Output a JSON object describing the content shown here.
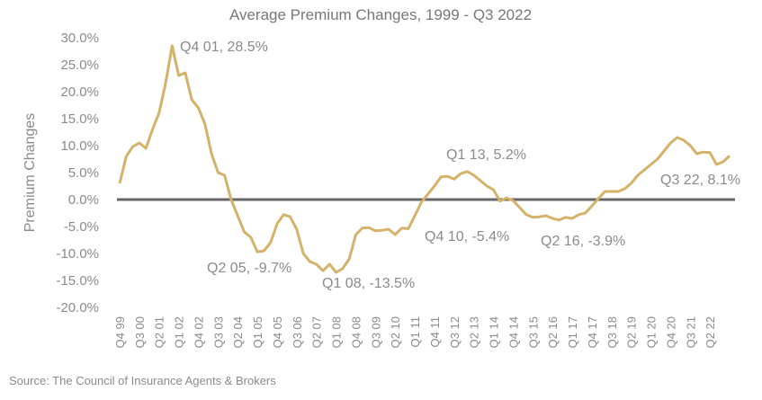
{
  "chart_data": {
    "type": "line",
    "title": "Average Premium Changes, 1999 - Q3 2022",
    "ylabel": "Premium Changes",
    "ylim": [
      -20,
      30
    ],
    "yticks": [
      30,
      25,
      20,
      15,
      10,
      5,
      0,
      -5,
      -10,
      -15,
      -20
    ],
    "ytick_labels": [
      "30.0%",
      "25.0%",
      "20.0%",
      "15.0%",
      "10.0%",
      "5.0%",
      "0.0%",
      "-5.0%",
      "-10.0%",
      "-15.0%",
      "-20.0%"
    ],
    "zero_line": true,
    "line_color": "#d4b26a",
    "zero_line_color": "#666666",
    "x_tick_labels": [
      "Q4 99",
      "Q3 00",
      "Q2 01",
      "Q1 02",
      "Q4 02",
      "Q3 03",
      "Q2 04",
      "Q1 05",
      "Q4 05",
      "Q3 06",
      "Q2 07",
      "Q1 08",
      "Q4 08",
      "Q3 09",
      "Q2 10",
      "Q1 11",
      "Q4 11",
      "Q3 12",
      "Q2 13",
      "Q1 14",
      "Q4 14",
      "Q3 15",
      "Q2 16",
      "Q1 17",
      "Q4 17",
      "Q3 18",
      "Q2 19",
      "Q1 20",
      "Q4 20",
      "Q3 21",
      "Q2 22"
    ],
    "series": [
      {
        "values": [
          3.0,
          8.0,
          9.8,
          10.5,
          9.5,
          13.0,
          16.0,
          21.5,
          28.5,
          23.0,
          23.5,
          18.5,
          17.0,
          14.0,
          8.5,
          5.0,
          4.5,
          0.0,
          -3.0,
          -6.0,
          -7.0,
          -9.7,
          -9.5,
          -8.0,
          -4.5,
          -2.8,
          -3.2,
          -5.5,
          -10.0,
          -11.5,
          -12.0,
          -13.2,
          -12.0,
          -13.5,
          -12.8,
          -11.0,
          -6.5,
          -5.3,
          -5.2,
          -5.8,
          -5.7,
          -5.5,
          -6.5,
          -5.3,
          -5.4,
          -3.0,
          -0.5,
          1.0,
          2.5,
          4.2,
          4.3,
          3.8,
          4.8,
          5.2,
          4.5,
          3.5,
          2.5,
          1.8,
          -0.3,
          0.3,
          -0.2,
          -1.5,
          -2.8,
          -3.3,
          -3.2,
          -3.0,
          -3.5,
          -3.8,
          -3.3,
          -3.5,
          -2.8,
          -2.5,
          -1.2,
          0.2,
          1.5,
          1.5,
          1.5,
          2.0,
          3.0,
          4.5,
          5.5,
          6.5,
          7.5,
          9.0,
          10.5,
          11.5,
          11.0,
          10.0,
          8.5,
          8.8,
          8.7,
          6.5,
          7.0,
          8.1
        ]
      }
    ],
    "annotations": [
      {
        "text": "Q4 01, 28.5%"
      },
      {
        "text": "Q2 05, -9.7%"
      },
      {
        "text": "Q1 08, -13.5%"
      },
      {
        "text": "Q4 10, -5.4%"
      },
      {
        "text": "Q1 13, 5.2%"
      },
      {
        "text": "Q2 16, -3.9%"
      },
      {
        "text": "Q3 22, 8.1%"
      }
    ],
    "source": "Source: The Council of Insurance Agents & Brokers"
  }
}
